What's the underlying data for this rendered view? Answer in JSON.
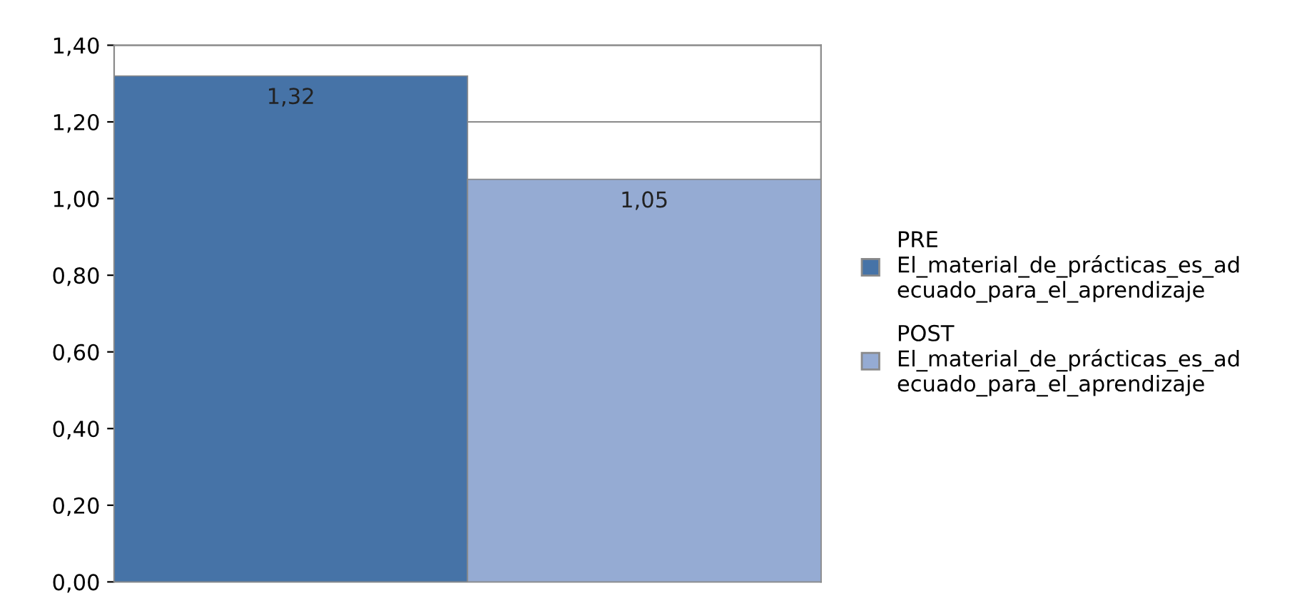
{
  "chart_data": {
    "type": "bar",
    "categories": [
      null
    ],
    "series": [
      {
        "name": "PRE\nEl_material_de_prácticas_es_ad\necuado_para_el_aprendizaje",
        "color": "#4673a7",
        "values": [
          1.32
        ],
        "value_labels": [
          "1,32"
        ]
      },
      {
        "name": "POST\nEl_material_de_prácticas_es_ad\necuado_para_el_aprendizaje",
        "color": "#95abd3",
        "values": [
          1.05
        ],
        "value_labels": [
          "1,05"
        ]
      }
    ],
    "ylim": [
      0,
      1.4
    ],
    "yticks": [
      {
        "value": 0,
        "label": "0,00"
      },
      {
        "value": 0.2,
        "label": "0,20"
      },
      {
        "value": 0.4,
        "label": "0,40"
      },
      {
        "value": 0.6,
        "label": "0,60"
      },
      {
        "value": 0.8,
        "label": "0,80"
      },
      {
        "value": 1.0,
        "label": "1,00"
      },
      {
        "value": 1.2,
        "label": "1,20"
      },
      {
        "value": 1.4,
        "label": "1,40"
      }
    ],
    "grid": "y",
    "legend": "right"
  }
}
